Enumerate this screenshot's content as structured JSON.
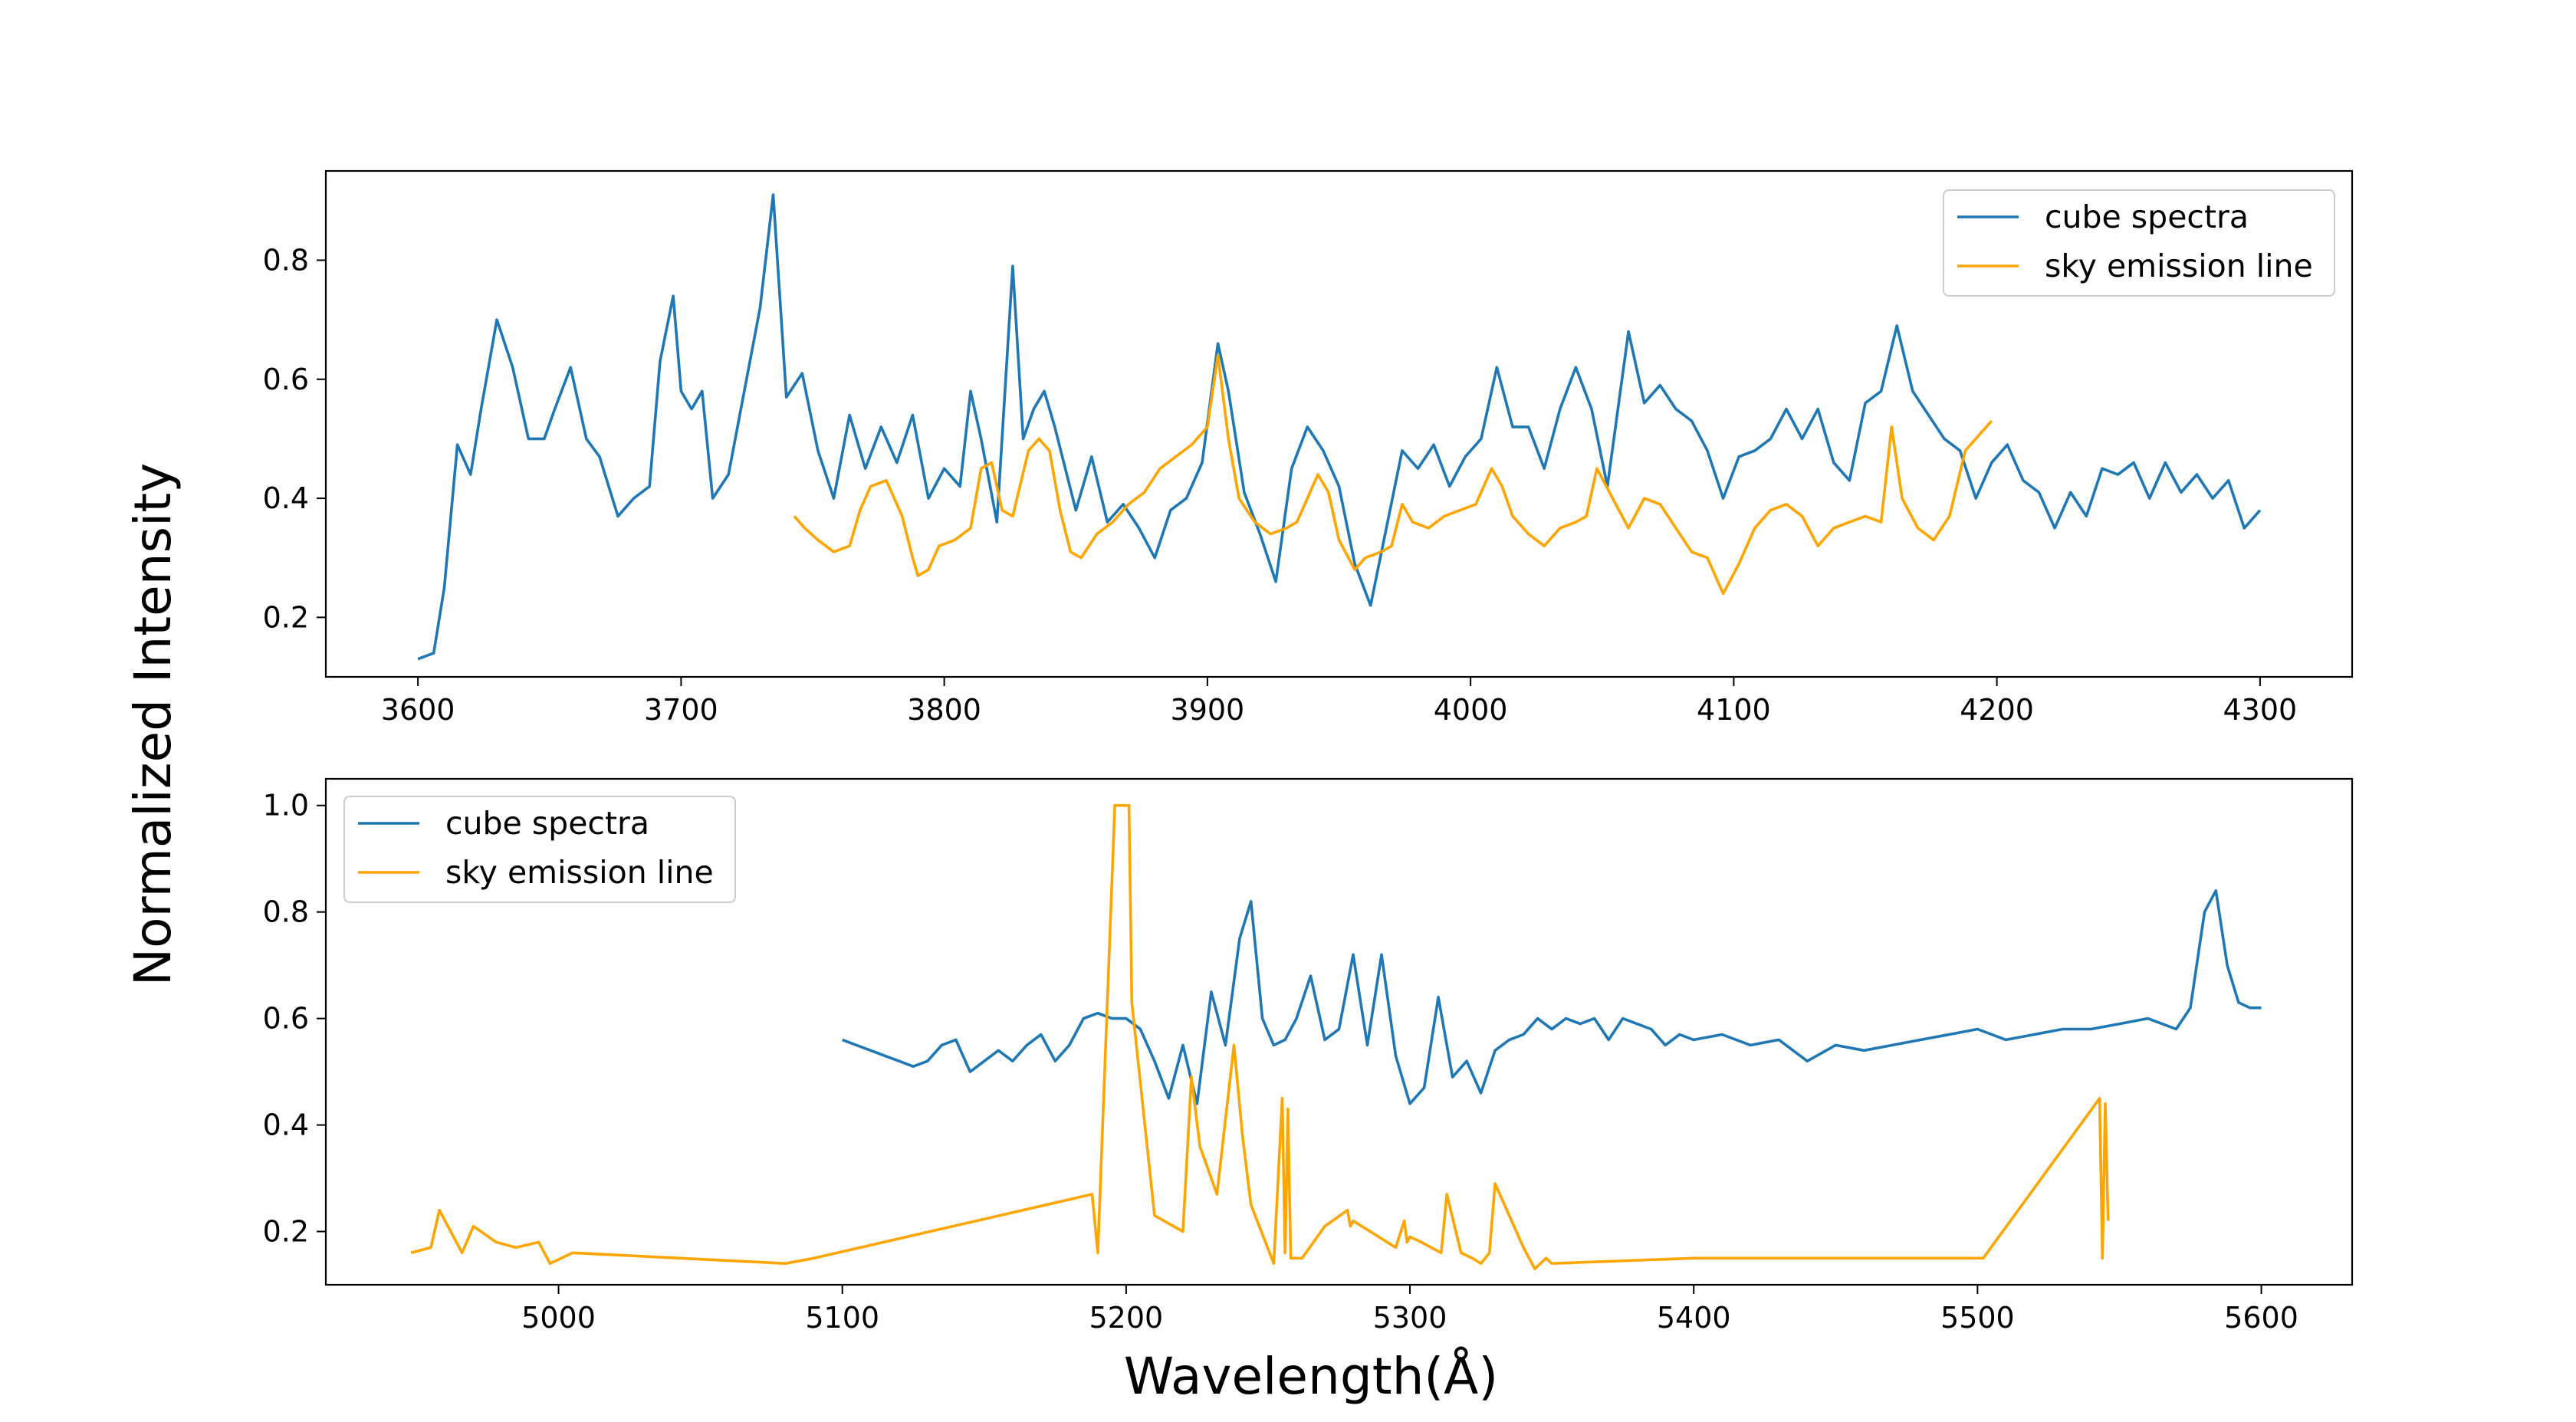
{
  "figure": {
    "xlabel": "Wavelength(Å)",
    "ylabel": "Normalized Intensity"
  },
  "colors": {
    "cube": "#1f77b4",
    "sky": "#ffa500"
  },
  "chart_data": [
    {
      "type": "line",
      "title": "",
      "xlim": [
        3565,
        4335
      ],
      "ylim": [
        0.1,
        0.95
      ],
      "xticks": [
        "3600",
        "3700",
        "3800",
        "3900",
        "4000",
        "4100",
        "4200",
        "4300"
      ],
      "yticks": [
        "0.2",
        "0.4",
        "0.6",
        "0.8"
      ],
      "legend": {
        "position": "upper right",
        "entries": [
          "cube spectra",
          "sky emission line"
        ]
      },
      "series": [
        {
          "name": "cube spectra",
          "x": [
            3600,
            3606,
            3610,
            3615,
            3620,
            3624,
            3630,
            3636,
            3642,
            3648,
            3652,
            3658,
            3664,
            3669,
            3676,
            3682,
            3688,
            3692,
            3697,
            3700,
            3704,
            3708,
            3712,
            3718,
            3724,
            3730,
            3735,
            3740,
            3746,
            3752,
            3758,
            3764,
            3770,
            3776,
            3782,
            3788,
            3794,
            3800,
            3806,
            3810,
            3814,
            3820,
            3826,
            3830,
            3834,
            3838,
            3842,
            3846,
            3850,
            3856,
            3862,
            3868,
            3874,
            3880,
            3886,
            3892,
            3898,
            3904,
            3908,
            3914,
            3920,
            3926,
            3932,
            3938,
            3944,
            3950,
            3956,
            3962,
            3968,
            3974,
            3980,
            3986,
            3992,
            3998,
            4004,
            4010,
            4016,
            4022,
            4028,
            4034,
            4040,
            4046,
            4052,
            4060,
            4066,
            4072,
            4078,
            4084,
            4090,
            4096,
            4102,
            4108,
            4114,
            4120,
            4126,
            4132,
            4138,
            4144,
            4150,
            4156,
            4162,
            4168,
            4174,
            4180,
            4186,
            4192,
            4198,
            4204,
            4210,
            4216,
            4222,
            4228,
            4234,
            4240,
            4246,
            4252,
            4258,
            4264,
            4270,
            4276,
            4282,
            4288,
            4294,
            4300
          ],
          "y": [
            0.13,
            0.14,
            0.25,
            0.49,
            0.44,
            0.55,
            0.7,
            0.62,
            0.5,
            0.5,
            0.55,
            0.62,
            0.5,
            0.47,
            0.37,
            0.4,
            0.42,
            0.63,
            0.74,
            0.58,
            0.55,
            0.58,
            0.4,
            0.44,
            0.58,
            0.72,
            0.91,
            0.57,
            0.61,
            0.48,
            0.4,
            0.54,
            0.45,
            0.52,
            0.46,
            0.54,
            0.4,
            0.45,
            0.42,
            0.58,
            0.5,
            0.36,
            0.79,
            0.5,
            0.55,
            0.58,
            0.52,
            0.45,
            0.38,
            0.47,
            0.36,
            0.39,
            0.35,
            0.3,
            0.38,
            0.4,
            0.46,
            0.66,
            0.58,
            0.41,
            0.34,
            0.26,
            0.45,
            0.52,
            0.48,
            0.42,
            0.29,
            0.22,
            0.35,
            0.48,
            0.45,
            0.49,
            0.42,
            0.47,
            0.5,
            0.62,
            0.52,
            0.52,
            0.45,
            0.55,
            0.62,
            0.55,
            0.42,
            0.68,
            0.56,
            0.59,
            0.55,
            0.53,
            0.48,
            0.4,
            0.47,
            0.48,
            0.5,
            0.55,
            0.5,
            0.55,
            0.46,
            0.43,
            0.56,
            0.58,
            0.69,
            0.58,
            0.54,
            0.5,
            0.48,
            0.4,
            0.46,
            0.49,
            0.43,
            0.41,
            0.35,
            0.41,
            0.37,
            0.45,
            0.44,
            0.46,
            0.4,
            0.46,
            0.41,
            0.44,
            0.4,
            0.43,
            0.35,
            0.38
          ]
        },
        {
          "name": "sky emission line",
          "x": [
            3743,
            3747,
            3752,
            3758,
            3764,
            3768,
            3772,
            3778,
            3784,
            3788,
            3790,
            3794,
            3798,
            3804,
            3810,
            3814,
            3818,
            3822,
            3826,
            3832,
            3836,
            3840,
            3844,
            3848,
            3852,
            3858,
            3864,
            3870,
            3876,
            3882,
            3888,
            3894,
            3900,
            3904,
            3908,
            3912,
            3918,
            3924,
            3930,
            3934,
            3938,
            3942,
            3946,
            3950,
            3956,
            3960,
            3966,
            3970,
            3974,
            3978,
            3984,
            3990,
            3996,
            4002,
            4008,
            4012,
            4016,
            4022,
            4028,
            4034,
            4040,
            4044,
            4048,
            4054,
            4060,
            4066,
            4072,
            4078,
            4084,
            4090,
            4096,
            4102,
            4108,
            4114,
            4120,
            4126,
            4132,
            4138,
            4144,
            4150,
            4156,
            4160,
            4164,
            4170,
            4176,
            4182,
            4188,
            4194,
            4198
          ],
          "y": [
            0.37,
            0.35,
            0.33,
            0.31,
            0.32,
            0.38,
            0.42,
            0.43,
            0.37,
            0.3,
            0.27,
            0.28,
            0.32,
            0.33,
            0.35,
            0.45,
            0.46,
            0.38,
            0.37,
            0.48,
            0.5,
            0.48,
            0.38,
            0.31,
            0.3,
            0.34,
            0.36,
            0.39,
            0.41,
            0.45,
            0.47,
            0.49,
            0.52,
            0.64,
            0.5,
            0.4,
            0.36,
            0.34,
            0.35,
            0.36,
            0.4,
            0.44,
            0.41,
            0.33,
            0.28,
            0.3,
            0.31,
            0.32,
            0.39,
            0.36,
            0.35,
            0.37,
            0.38,
            0.39,
            0.45,
            0.42,
            0.37,
            0.34,
            0.32,
            0.35,
            0.36,
            0.37,
            0.45,
            0.4,
            0.35,
            0.4,
            0.39,
            0.35,
            0.31,
            0.3,
            0.24,
            0.29,
            0.35,
            0.38,
            0.39,
            0.37,
            0.32,
            0.35,
            0.36,
            0.37,
            0.36,
            0.52,
            0.4,
            0.35,
            0.33,
            0.37,
            0.48,
            0.51,
            0.53
          ]
        }
      ]
    },
    {
      "type": "line",
      "title": "",
      "xlim": [
        4918,
        5632
      ],
      "ylim": [
        0.1,
        1.05
      ],
      "xticks": [
        "5000",
        "5100",
        "5200",
        "5300",
        "5400",
        "5500",
        "5600"
      ],
      "yticks": [
        "0.2",
        "0.4",
        "0.6",
        "0.8",
        "1.0"
      ],
      "legend": {
        "position": "upper left",
        "entries": [
          "cube spectra",
          "sky emission line"
        ]
      },
      "series": [
        {
          "name": "cube spectra",
          "x": [
            5100,
            5105,
            5110,
            5115,
            5120,
            5125,
            5130,
            5135,
            5140,
            5145,
            5150,
            5155,
            5160,
            5165,
            5170,
            5175,
            5180,
            5185,
            5190,
            5195,
            5200,
            5205,
            5210,
            5215,
            5220,
            5225,
            5230,
            5235,
            5240,
            5244,
            5248,
            5252,
            5256,
            5260,
            5265,
            5270,
            5275,
            5280,
            5285,
            5290,
            5295,
            5300,
            5305,
            5310,
            5315,
            5320,
            5325,
            5330,
            5335,
            5340,
            5345,
            5350,
            5355,
            5360,
            5365,
            5370,
            5375,
            5380,
            5385,
            5390,
            5395,
            5400,
            5410,
            5420,
            5430,
            5440,
            5450,
            5460,
            5470,
            5480,
            5490,
            5500,
            5510,
            5520,
            5530,
            5540,
            5550,
            5560,
            5570,
            5575,
            5580,
            5584,
            5588,
            5592,
            5596,
            5600
          ],
          "y": [
            0.56,
            0.55,
            0.54,
            0.53,
            0.52,
            0.51,
            0.52,
            0.55,
            0.56,
            0.5,
            0.52,
            0.54,
            0.52,
            0.55,
            0.57,
            0.52,
            0.55,
            0.6,
            0.61,
            0.6,
            0.6,
            0.58,
            0.52,
            0.45,
            0.55,
            0.44,
            0.65,
            0.55,
            0.75,
            0.82,
            0.6,
            0.55,
            0.56,
            0.6,
            0.68,
            0.56,
            0.58,
            0.72,
            0.55,
            0.72,
            0.53,
            0.44,
            0.47,
            0.64,
            0.49,
            0.52,
            0.46,
            0.54,
            0.56,
            0.57,
            0.6,
            0.58,
            0.6,
            0.59,
            0.6,
            0.56,
            0.6,
            0.59,
            0.58,
            0.55,
            0.57,
            0.56,
            0.57,
            0.55,
            0.56,
            0.52,
            0.55,
            0.54,
            0.55,
            0.56,
            0.57,
            0.58,
            0.56,
            0.57,
            0.58,
            0.58,
            0.59,
            0.6,
            0.58,
            0.62,
            0.8,
            0.84,
            0.7,
            0.63,
            0.62,
            0.62
          ]
        },
        {
          "name": "sky emission line",
          "x": [
            4948,
            4955,
            4958,
            4962,
            4966,
            4970,
            4978,
            4985,
            4993,
            4997,
            5005,
            5080,
            5090,
            5188,
            5190,
            5196,
            5198,
            5201,
            5202,
            5210,
            5220,
            5223,
            5226,
            5232,
            5238,
            5241,
            5244,
            5252,
            5255,
            5256,
            5257,
            5258,
            5262,
            5270,
            5278,
            5279,
            5280,
            5295,
            5298,
            5299,
            5300,
            5304,
            5311,
            5313,
            5318,
            5322,
            5325,
            5328,
            5330,
            5340,
            5344,
            5348,
            5350,
            5400,
            5502,
            5543,
            5544,
            5545,
            5546
          ],
          "y": [
            0.16,
            0.17,
            0.24,
            0.2,
            0.16,
            0.21,
            0.18,
            0.17,
            0.18,
            0.14,
            0.16,
            0.14,
            0.15,
            0.27,
            0.16,
            1.0,
            1.0,
            1.0,
            0.63,
            0.23,
            0.2,
            0.49,
            0.36,
            0.27,
            0.55,
            0.38,
            0.25,
            0.14,
            0.45,
            0.16,
            0.43,
            0.15,
            0.15,
            0.21,
            0.24,
            0.21,
            0.22,
            0.17,
            0.22,
            0.18,
            0.19,
            0.18,
            0.16,
            0.27,
            0.16,
            0.15,
            0.14,
            0.16,
            0.29,
            0.17,
            0.13,
            0.15,
            0.14,
            0.15,
            0.15,
            0.45,
            0.15,
            0.44,
            0.22
          ]
        }
      ]
    }
  ]
}
